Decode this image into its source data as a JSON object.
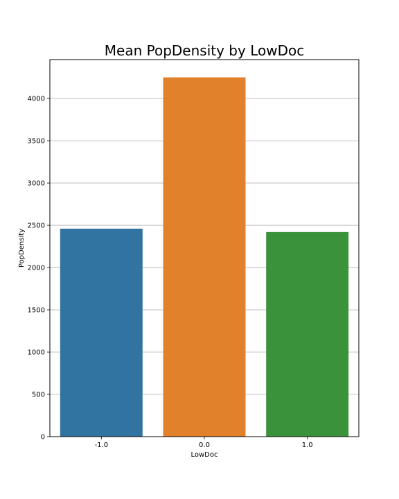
{
  "chart_data": {
    "type": "bar",
    "title": "Mean PopDensity by LowDoc",
    "xlabel": "LowDoc",
    "ylabel": "PopDensity",
    "categories": [
      "-1.0",
      "0.0",
      "1.0"
    ],
    "values": [
      2460,
      4250,
      2420
    ],
    "colors": [
      "#3274a1",
      "#e1812c",
      "#3a923a"
    ],
    "ylim": [
      0,
      4460
    ],
    "yticks": [
      0,
      500,
      1000,
      1500,
      2000,
      2500,
      3000,
      3500,
      4000
    ],
    "ytick_labels": [
      "0",
      "500",
      "1000",
      "1500",
      "2000",
      "2500",
      "3000",
      "3500",
      "4000"
    ],
    "grid": "y",
    "legend": "none"
  }
}
